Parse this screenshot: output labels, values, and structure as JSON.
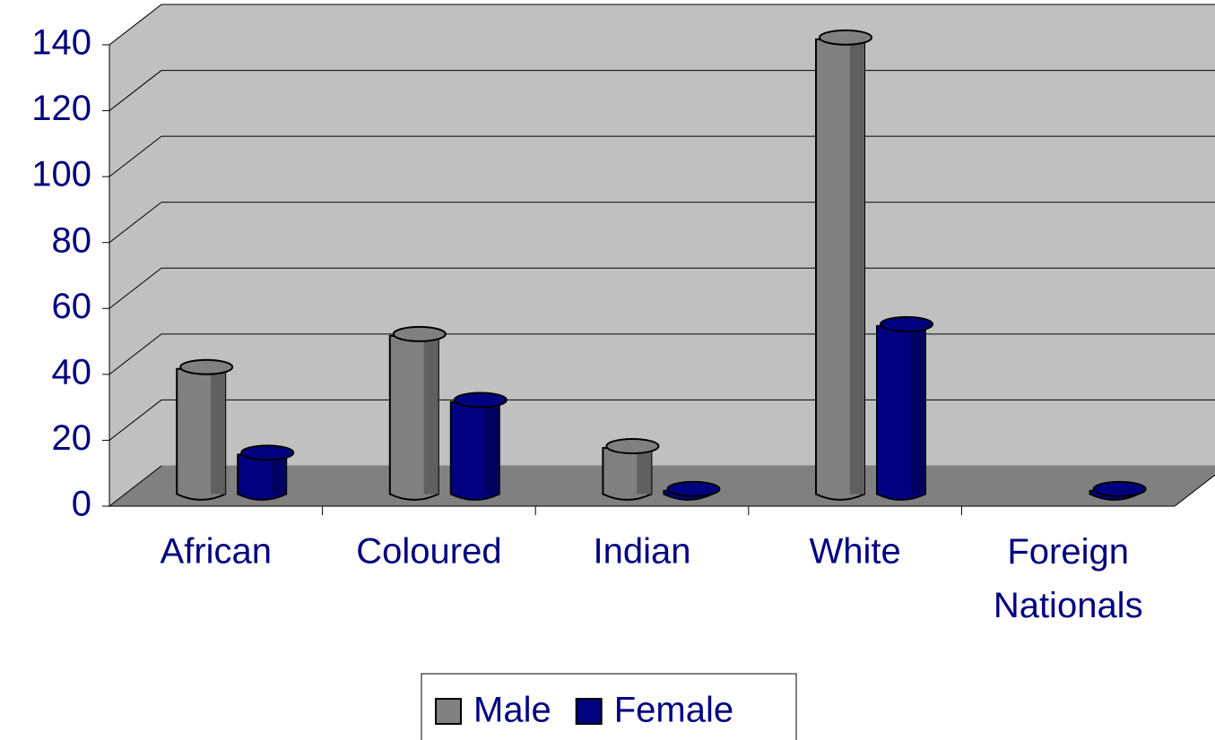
{
  "chart_data": {
    "type": "bar",
    "categories": [
      "African",
      "Coloured",
      "Indian",
      "White",
      "Foreign Nationals"
    ],
    "series": [
      {
        "name": "Male",
        "color": "#808080",
        "values": [
          38,
          48,
          14,
          138,
          0
        ]
      },
      {
        "name": "Female",
        "color": "#000080",
        "values": [
          12,
          28,
          1,
          51,
          1
        ]
      }
    ],
    "ylim": [
      0,
      140
    ],
    "yticks": [
      0,
      20,
      40,
      60,
      80,
      100,
      120,
      140
    ],
    "grid": true,
    "legend": "bottom"
  }
}
